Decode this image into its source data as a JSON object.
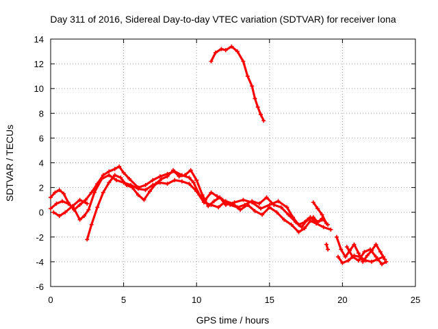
{
  "chart_data": {
    "type": "scatter",
    "title": "Day 311 of 2016, Sidereal Day-to-day VTEC variation (SDTVAR) for receiver Iona",
    "xlabel": "GPS time / hours",
    "ylabel": "SDTVAR / TECUs",
    "xlim": [
      0,
      25
    ],
    "ylim": [
      -6,
      14
    ],
    "xticks": [
      0,
      5,
      10,
      15,
      20,
      25
    ],
    "yticks": [
      -6,
      -4,
      -2,
      0,
      2,
      4,
      6,
      8,
      10,
      12,
      14
    ],
    "grid": true,
    "color": "#ff0000",
    "series": [
      {
        "name": "track-1",
        "points": [
          [
            0,
            1.2
          ],
          [
            0.3,
            1.6
          ],
          [
            0.6,
            1.8
          ],
          [
            0.9,
            1.5
          ],
          [
            1.2,
            0.8
          ],
          [
            1.6,
            0.2
          ],
          [
            2.0,
            0.6
          ],
          [
            2.4,
            1.0
          ],
          [
            2.8,
            1.6
          ],
          [
            3.2,
            2.3
          ],
          [
            3.6,
            3.0
          ],
          [
            4.0,
            3.3
          ],
          [
            4.4,
            3.5
          ],
          [
            4.7,
            3.7
          ],
          [
            5.0,
            3.2
          ],
          [
            5.4,
            2.7
          ],
          [
            6.0,
            2.0
          ],
          [
            6.5,
            2.2
          ],
          [
            7.0,
            2.6
          ],
          [
            7.5,
            2.9
          ],
          [
            8.0,
            3.1
          ],
          [
            8.5,
            3.3
          ],
          [
            9.0,
            3.0
          ],
          [
            9.5,
            2.8
          ],
          [
            9.8,
            2.4
          ],
          [
            10.2,
            1.4
          ],
          [
            10.6,
            1.0
          ],
          [
            11.0,
            1.6
          ],
          [
            11.4,
            1.3
          ],
          [
            11.8,
            1.0
          ],
          [
            12.3,
            0.6
          ],
          [
            12.8,
            0.4
          ],
          [
            13.3,
            0.6
          ],
          [
            13.8,
            0.9
          ],
          [
            14.3,
            0.7
          ],
          [
            14.8,
            1.2
          ],
          [
            15.3,
            0.6
          ],
          [
            15.8,
            0.4
          ],
          [
            16.3,
            -0.2
          ],
          [
            16.8,
            -0.8
          ],
          [
            17.2,
            -1.2
          ],
          [
            17.6,
            -0.6
          ],
          [
            18.0,
            -0.4
          ],
          [
            18.3,
            -0.8
          ],
          [
            18.6,
            -0.5
          ],
          [
            19.0,
            -1.0
          ]
        ]
      },
      {
        "name": "track-2",
        "points": [
          [
            0,
            0.3
          ],
          [
            0.4,
            0.7
          ],
          [
            0.8,
            0.9
          ],
          [
            1.2,
            0.7
          ],
          [
            1.6,
            0.3
          ],
          [
            2.0,
            -0.6
          ],
          [
            2.3,
            -0.3
          ],
          [
            2.6,
            0.2
          ],
          [
            3.0,
            1.6
          ],
          [
            3.5,
            2.7
          ],
          [
            4.0,
            3.0
          ],
          [
            4.5,
            2.6
          ],
          [
            5.0,
            2.4
          ],
          [
            5.5,
            2.2
          ],
          [
            6.0,
            1.9
          ],
          [
            6.5,
            1.8
          ],
          [
            7.0,
            2.2
          ],
          [
            7.5,
            2.4
          ],
          [
            8.0,
            2.3
          ],
          [
            8.5,
            2.6
          ],
          [
            9.0,
            2.5
          ],
          [
            9.5,
            2.3
          ],
          [
            10.0,
            1.7
          ],
          [
            10.5,
            0.8
          ],
          [
            11.0,
            0.6
          ],
          [
            11.5,
            0.4
          ],
          [
            12.0,
            0.9
          ],
          [
            12.5,
            0.7
          ],
          [
            13.0,
            0.2
          ],
          [
            13.5,
            0.6
          ],
          [
            14.0,
            0.1
          ],
          [
            14.5,
            -0.2
          ],
          [
            15.0,
            0.4
          ],
          [
            15.5,
            0.0
          ],
          [
            16.0,
            -0.6
          ],
          [
            16.5,
            -1.0
          ],
          [
            17.0,
            -1.6
          ],
          [
            17.4,
            -1.3
          ],
          [
            17.8,
            -0.7
          ],
          [
            18.2,
            -0.9
          ],
          [
            18.7,
            -1.2
          ],
          [
            19.2,
            -1.4
          ]
        ]
      },
      {
        "name": "track-3",
        "points": [
          [
            0.2,
            0.0
          ],
          [
            0.6,
            -0.3
          ],
          [
            1.0,
            0.0
          ],
          [
            1.5,
            0.5
          ],
          [
            2.0,
            1.0
          ],
          [
            2.5,
            0.7
          ]
        ]
      },
      {
        "name": "track-4",
        "points": [
          [
            2.5,
            -2.2
          ],
          [
            2.8,
            -1.0
          ],
          [
            3.2,
            0.4
          ],
          [
            3.6,
            1.6
          ],
          [
            4.0,
            2.4
          ],
          [
            4.4,
            3.0
          ],
          [
            4.8,
            2.8
          ],
          [
            5.2,
            2.2
          ],
          [
            5.6,
            2.0
          ],
          [
            6.0,
            1.4
          ],
          [
            6.4,
            1.0
          ],
          [
            6.8,
            1.7
          ],
          [
            7.2,
            2.3
          ],
          [
            7.6,
            2.7
          ],
          [
            8.0,
            2.9
          ],
          [
            8.4,
            3.4
          ],
          [
            8.8,
            2.9
          ],
          [
            9.2,
            3.0
          ],
          [
            9.6,
            3.4
          ],
          [
            10.0,
            2.6
          ],
          [
            10.4,
            1.4
          ],
          [
            10.8,
            0.5
          ],
          [
            11.2,
            0.9
          ],
          [
            11.6,
            1.2
          ],
          [
            12.0,
            0.6
          ],
          [
            12.6,
            0.8
          ],
          [
            13.2,
            1.0
          ],
          [
            13.8,
            0.8
          ],
          [
            14.4,
            0.3
          ],
          [
            15.0,
            0.6
          ],
          [
            15.6,
            0.9
          ],
          [
            16.2,
            0.4
          ],
          [
            16.6,
            -0.4
          ],
          [
            17.0,
            -1.0
          ],
          [
            17.4,
            -0.8
          ],
          [
            17.8,
            -0.4
          ],
          [
            18.2,
            -0.9
          ],
          [
            18.6,
            -0.6
          ]
        ]
      },
      {
        "name": "track-5",
        "points": [
          [
            18.0,
            0.8
          ],
          [
            18.3,
            0.3
          ],
          [
            18.6,
            -0.2
          ],
          [
            18.9,
            -0.9
          ]
        ]
      },
      {
        "name": "track-6",
        "points": [
          [
            18.9,
            -2.6
          ],
          [
            19.0,
            -3.0
          ]
        ]
      },
      {
        "name": "track-7",
        "points": [
          [
            19.6,
            -2.0
          ],
          [
            19.9,
            -3.0
          ],
          [
            20.2,
            -3.6
          ],
          [
            20.5,
            -3.1
          ],
          [
            20.8,
            -2.6
          ],
          [
            21.1,
            -3.3
          ],
          [
            21.4,
            -4.0
          ],
          [
            21.7,
            -3.5
          ],
          [
            22.0,
            -3.1
          ],
          [
            22.3,
            -2.6
          ],
          [
            22.6,
            -3.2
          ],
          [
            22.9,
            -3.8
          ]
        ]
      },
      {
        "name": "track-8",
        "points": [
          [
            19.7,
            -3.6
          ],
          [
            20.0,
            -4.1
          ],
          [
            20.4,
            -3.9
          ],
          [
            20.8,
            -3.5
          ],
          [
            21.2,
            -3.6
          ],
          [
            21.6,
            -3.9
          ],
          [
            22.0,
            -4.0
          ],
          [
            22.4,
            -3.8
          ],
          [
            22.8,
            -3.6
          ]
        ]
      },
      {
        "name": "track-9",
        "points": [
          [
            20.3,
            -2.8
          ],
          [
            20.7,
            -3.6
          ],
          [
            21.1,
            -3.9
          ],
          [
            21.5,
            -3.2
          ],
          [
            21.9,
            -3.0
          ],
          [
            22.3,
            -3.6
          ],
          [
            22.7,
            -4.2
          ],
          [
            23.0,
            -4.0
          ]
        ]
      },
      {
        "name": "track-10",
        "points": [
          [
            11.0,
            12.2
          ],
          [
            11.3,
            12.9
          ],
          [
            11.7,
            13.2
          ],
          [
            12.0,
            13.1
          ],
          [
            12.4,
            13.4
          ],
          [
            12.8,
            13.0
          ],
          [
            13.2,
            12.2
          ],
          [
            13.5,
            11.0
          ],
          [
            13.8,
            10.2
          ],
          [
            14.0,
            9.2
          ],
          [
            14.2,
            8.5
          ],
          [
            14.4,
            7.9
          ],
          [
            14.6,
            7.4
          ]
        ]
      }
    ]
  }
}
